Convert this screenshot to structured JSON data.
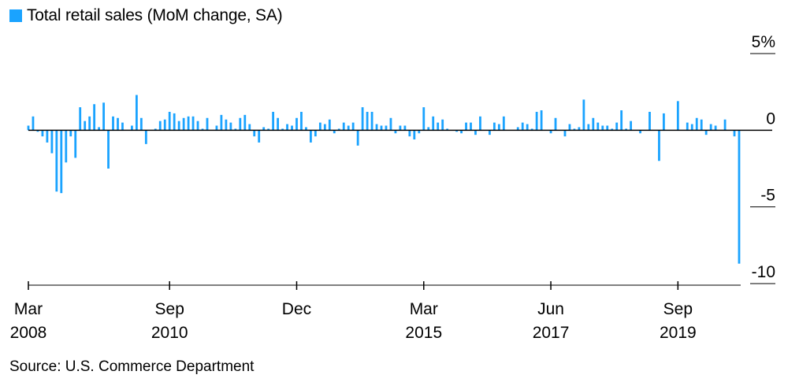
{
  "legend": {
    "label": "Total retail sales (MoM change, SA)",
    "color": "#1aa3ff"
  },
  "source": "Source: U.S. Commerce Department",
  "chart_data": {
    "type": "bar",
    "series": [
      {
        "name": "Total retail sales (MoM change, SA)",
        "start": "2008-03",
        "values": [
          0.3,
          0.9,
          -0.1,
          -0.4,
          -0.8,
          -1.5,
          -4.0,
          -4.1,
          -2.1,
          -0.4,
          -1.8,
          1.5,
          0.6,
          0.9,
          1.7,
          0.2,
          1.8,
          -2.5,
          0.9,
          0.8,
          0.5,
          0.0,
          0.3,
          2.3,
          0.8,
          -0.9,
          0.0,
          0.1,
          0.6,
          0.7,
          1.2,
          1.1,
          0.6,
          0.8,
          0.9,
          0.9,
          0.6,
          0.1,
          0.8,
          0.0,
          0.3,
          1.0,
          0.7,
          0.5,
          0.1,
          0.8,
          1.0,
          0.4,
          -0.4,
          -0.8,
          0.2,
          0.1,
          1.2,
          0.8,
          0.1,
          0.4,
          0.3,
          0.8,
          1.2,
          0.2,
          -0.8,
          -0.4,
          0.5,
          0.4,
          0.7,
          -0.2,
          0.1,
          0.5,
          0.3,
          0.5,
          -1.0,
          1.5,
          1.2,
          1.2,
          0.4,
          0.3,
          0.3,
          0.8,
          -0.2,
          0.3,
          0.3,
          -0.4,
          -0.6,
          -0.2,
          1.5,
          0.2,
          0.9,
          0.5,
          0.7,
          0.1,
          0.0,
          -0.1,
          -0.2,
          0.5,
          0.5,
          -0.3,
          0.9,
          0.0,
          -0.3,
          0.5,
          0.4,
          0.9,
          0.0,
          0.0,
          0.2,
          0.5,
          0.4,
          0.1,
          1.2,
          1.3,
          0.0,
          -0.2,
          0.8,
          0.0,
          -0.4,
          0.4,
          0.1,
          0.2,
          2.0,
          0.4,
          0.8,
          0.5,
          0.3,
          0.3,
          0.1,
          0.5,
          1.3,
          0.1,
          0.6,
          0.0,
          -0.2,
          0.0,
          1.2,
          0.0,
          -2.0,
          1.1,
          0.0,
          0.0,
          1.9,
          0.0,
          0.5,
          0.4,
          0.8,
          0.7,
          -0.3,
          0.4,
          0.3,
          0.0,
          0.7,
          0.0,
          -0.4,
          -8.7
        ]
      }
    ],
    "ylim": [
      -10,
      5
    ],
    "yticks": [
      {
        "value": 5,
        "label": "5%"
      },
      {
        "value": 0,
        "label": "0"
      },
      {
        "value": -5,
        "label": "-5"
      },
      {
        "value": -10,
        "label": "-10"
      }
    ],
    "xticks": [
      {
        "date": "2008-03",
        "label1": "Mar",
        "label2": "2008"
      },
      {
        "date": "2010-09",
        "label1": "Sep",
        "label2": "2010"
      },
      {
        "date": "2012-12",
        "label1": "Dec",
        "label2": ""
      },
      {
        "date": "2015-03",
        "label1": "Mar",
        "label2": "2015"
      },
      {
        "date": "2017-06",
        "label1": "Jun",
        "label2": "2017"
      },
      {
        "date": "2019-09",
        "label1": "Sep",
        "label2": "2019"
      }
    ],
    "grid": false
  }
}
